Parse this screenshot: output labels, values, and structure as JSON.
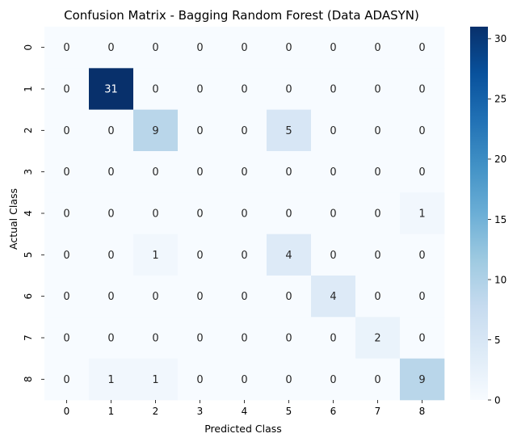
{
  "chart_data": {
    "type": "heatmap",
    "title": "Confusion Matrix - Bagging Random Forest (Data ADASYN)",
    "xlabel": "Predicted Class",
    "ylabel": "Actual Class",
    "x_categories": [
      "0",
      "1",
      "2",
      "3",
      "4",
      "5",
      "6",
      "7",
      "8"
    ],
    "y_categories": [
      "0",
      "1",
      "2",
      "3",
      "4",
      "5",
      "6",
      "7",
      "8"
    ],
    "matrix": [
      [
        0,
        0,
        0,
        0,
        0,
        0,
        0,
        0,
        0
      ],
      [
        0,
        31,
        0,
        0,
        0,
        0,
        0,
        0,
        0
      ],
      [
        0,
        0,
        9,
        0,
        0,
        5,
        0,
        0,
        0
      ],
      [
        0,
        0,
        0,
        0,
        0,
        0,
        0,
        0,
        0
      ],
      [
        0,
        0,
        0,
        0,
        0,
        0,
        0,
        0,
        1
      ],
      [
        0,
        0,
        1,
        0,
        0,
        4,
        0,
        0,
        0
      ],
      [
        0,
        0,
        0,
        0,
        0,
        0,
        4,
        0,
        0
      ],
      [
        0,
        0,
        0,
        0,
        0,
        0,
        0,
        2,
        0
      ],
      [
        0,
        1,
        1,
        0,
        0,
        0,
        0,
        0,
        9
      ]
    ],
    "colorbar": {
      "colormap": "Blues",
      "range": [
        0,
        31
      ],
      "ticks": [
        0,
        5,
        10,
        15,
        20,
        25,
        30
      ]
    },
    "annotations": true
  }
}
